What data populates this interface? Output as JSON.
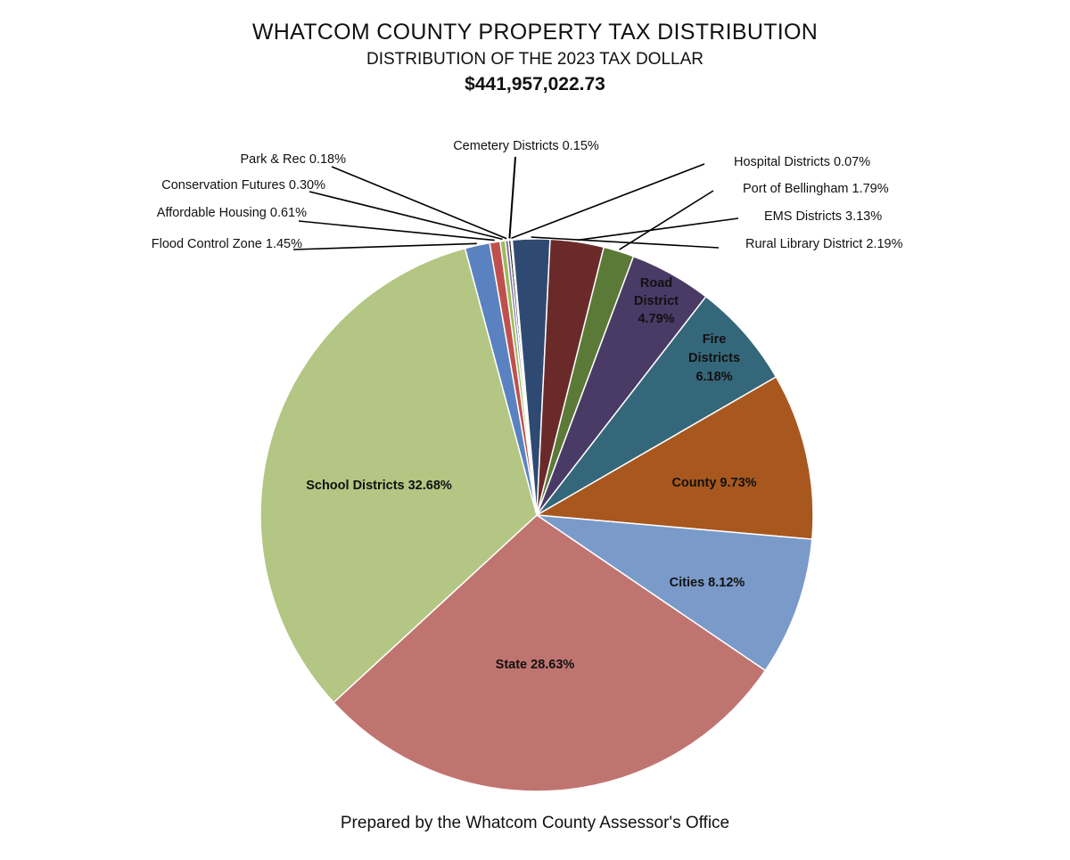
{
  "header": {
    "title": "WHATCOM COUNTY PROPERTY TAX DISTRIBUTION",
    "subtitle": "DISTRIBUTION OF THE 2023 TAX DOLLAR",
    "total": "$441,957,022.73"
  },
  "footer": {
    "text": "Prepared by the Whatcom County Assessor's Office"
  },
  "chart_data": {
    "type": "pie",
    "title": "WHATCOM COUNTY PROPERTY TAX DISTRIBUTION",
    "subtitle": "DISTRIBUTION OF THE 2023 TAX DOLLAR",
    "unit": "%",
    "slices": [
      {
        "name": "Cemetery Districts",
        "value": 0.15,
        "color": "#2c2c2c",
        "label": "Cemetery Districts 0.15%",
        "label_style": "callout"
      },
      {
        "name": "Hospital Districts",
        "value": 0.07,
        "color": "#8a8a8a",
        "label": "Hospital Districts 0.07%",
        "label_style": "callout"
      },
      {
        "name": "Rural Library District",
        "value": 2.19,
        "color": "#2f4a72",
        "label": "Rural Library District 2.19%",
        "label_style": "callout"
      },
      {
        "name": "EMS Districts",
        "value": 3.13,
        "color": "#6b2a2a",
        "label": "EMS Districts 3.13%",
        "label_style": "callout"
      },
      {
        "name": "Port of Bellingham",
        "value": 1.79,
        "color": "#5b7a37",
        "label": "Port of Bellingham 1.79%",
        "label_style": "callout"
      },
      {
        "name": "Road District",
        "value": 4.79,
        "color": "#4a3a66",
        "label_lines": [
          "Road",
          "District",
          "4.79%"
        ],
        "label_style": "inside"
      },
      {
        "name": "Fire Districts",
        "value": 6.18,
        "color": "#35677a",
        "label_lines": [
          "Fire",
          "Districts",
          "6.18%"
        ],
        "label_style": "inside"
      },
      {
        "name": "County",
        "value": 9.73,
        "color": "#a8581e",
        "label_lines": [
          "County 9.73%"
        ],
        "label_style": "inside"
      },
      {
        "name": "Cities",
        "value": 8.12,
        "color": "#7a9ac9",
        "label_lines": [
          "Cities 8.12%"
        ],
        "label_style": "inside"
      },
      {
        "name": "State",
        "value": 28.63,
        "color": "#c07470",
        "label_lines": [
          "State 28.63%"
        ],
        "label_style": "inside"
      },
      {
        "name": "School Districts",
        "value": 32.68,
        "color": "#b3c683",
        "label_lines": [
          "School Districts 32.68%"
        ],
        "label_style": "inside"
      },
      {
        "name": "Flood Control Zone",
        "value": 1.45,
        "color": "#5a82c0",
        "label": "Flood Control Zone 1.45%",
        "label_style": "callout"
      },
      {
        "name": "Affordable Housing",
        "value": 0.61,
        "color": "#c0504d",
        "label": "Affordable Housing 0.61%",
        "label_style": "callout"
      },
      {
        "name": "Conservation Futures",
        "value": 0.3,
        "color": "#9bbb59",
        "label": "Conservation Futures 0.30%",
        "label_style": "callout"
      },
      {
        "name": "Park & Rec",
        "value": 0.18,
        "color": "#7f6f9f",
        "label": "Park & Rec 0.18%",
        "label_style": "callout"
      }
    ]
  }
}
